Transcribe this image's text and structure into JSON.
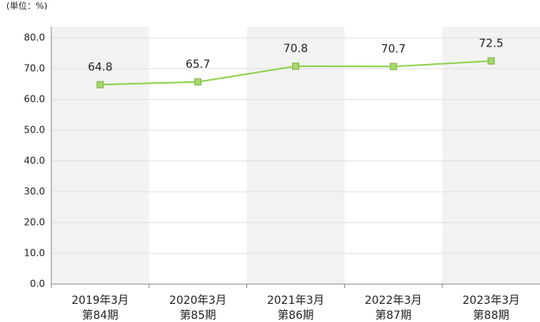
{
  "chart_data": {
    "type": "line",
    "unit_label": "(単位：%)",
    "categories": [
      [
        "2019年3月",
        "第84期"
      ],
      [
        "2020年3月",
        "第85期"
      ],
      [
        "2021年3月",
        "第86期"
      ],
      [
        "2022年3月",
        "第87期"
      ],
      [
        "2023年3月",
        "第88期"
      ]
    ],
    "series": [
      {
        "color": "#8fd14f",
        "values": [
          64.8,
          65.7,
          70.8,
          70.7,
          72.5
        ]
      }
    ],
    "ylim": [
      0,
      80
    ],
    "yticks": [
      {
        "value": 0,
        "label": "0.0"
      },
      {
        "value": 10,
        "label": "10.0"
      },
      {
        "value": 20,
        "label": "20.0"
      },
      {
        "value": 30,
        "label": "30.0"
      },
      {
        "value": 40,
        "label": "40.0"
      },
      {
        "value": 50,
        "label": "50.0"
      },
      {
        "value": 60,
        "label": "60.0"
      },
      {
        "value": 70,
        "label": "70.0"
      },
      {
        "value": 80,
        "label": "80.0"
      }
    ],
    "grid": true
  }
}
